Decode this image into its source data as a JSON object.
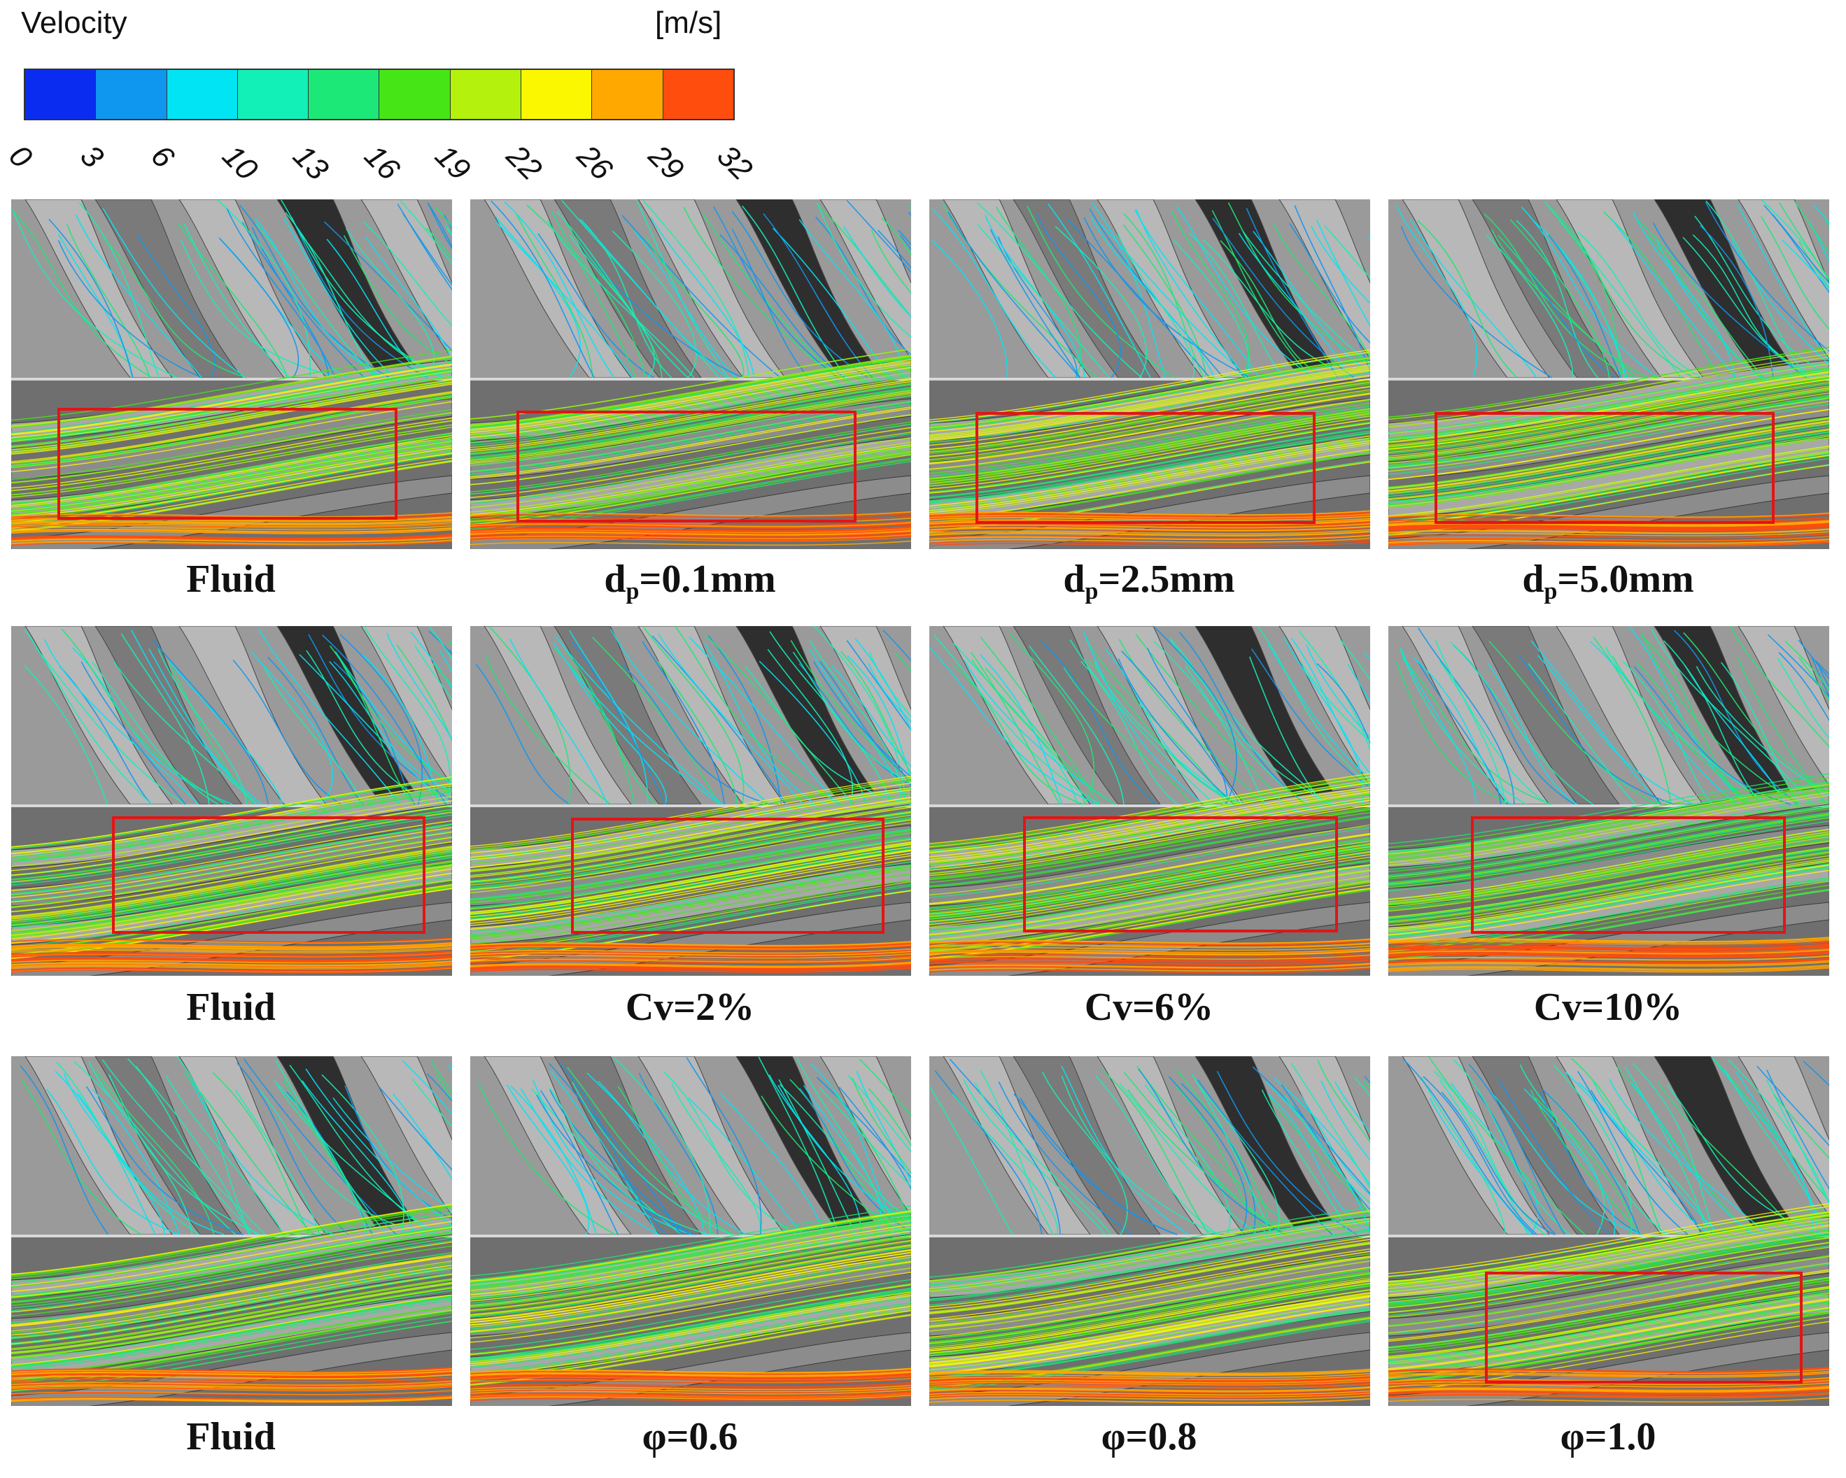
{
  "legend": {
    "title": "Velocity",
    "unit": "[m/s]",
    "ticks": [
      "0",
      "3",
      "6",
      "10",
      "13",
      "16",
      "19",
      "22",
      "26",
      "29",
      "32"
    ],
    "colors": [
      "#0a2cf0",
      "#0f96ee",
      "#00e4f4",
      "#12f0b8",
      "#1ce877",
      "#46e616",
      "#b4f10c",
      "#fbf700",
      "#ffa900",
      "#ff4d0e"
    ]
  },
  "rows": [
    {
      "panels": [
        {
          "caption": "Fluid",
          "caption_sub": "",
          "caption_suffix": "",
          "highlight": true
        },
        {
          "caption": "d",
          "caption_sub": "p",
          "caption_suffix": "=0.1mm",
          "highlight": true
        },
        {
          "caption": "d",
          "caption_sub": "p",
          "caption_suffix": "=2.5mm",
          "highlight": true
        },
        {
          "caption": "d",
          "caption_sub": "p",
          "caption_suffix": "=5.0mm",
          "highlight": true
        }
      ]
    },
    {
      "panels": [
        {
          "caption": "Fluid",
          "caption_sub": "",
          "caption_suffix": "",
          "highlight": true
        },
        {
          "caption": "Cv=2%",
          "caption_sub": "",
          "caption_suffix": "",
          "highlight": true
        },
        {
          "caption": "Cv=6%",
          "caption_sub": "",
          "caption_suffix": "",
          "highlight": true
        },
        {
          "caption": "Cv=10%",
          "caption_sub": "",
          "caption_suffix": "",
          "highlight": true
        }
      ]
    },
    {
      "panels": [
        {
          "caption": "Fluid",
          "caption_sub": "",
          "caption_suffix": "",
          "highlight": false
        },
        {
          "caption": "φ=0.6",
          "caption_sub": "",
          "caption_suffix": "",
          "highlight": false
        },
        {
          "caption": "φ=0.8",
          "caption_sub": "",
          "caption_suffix": "",
          "highlight": false
        },
        {
          "caption": "φ=1.0",
          "caption_sub": "",
          "caption_suffix": "",
          "highlight": true
        }
      ]
    }
  ]
}
